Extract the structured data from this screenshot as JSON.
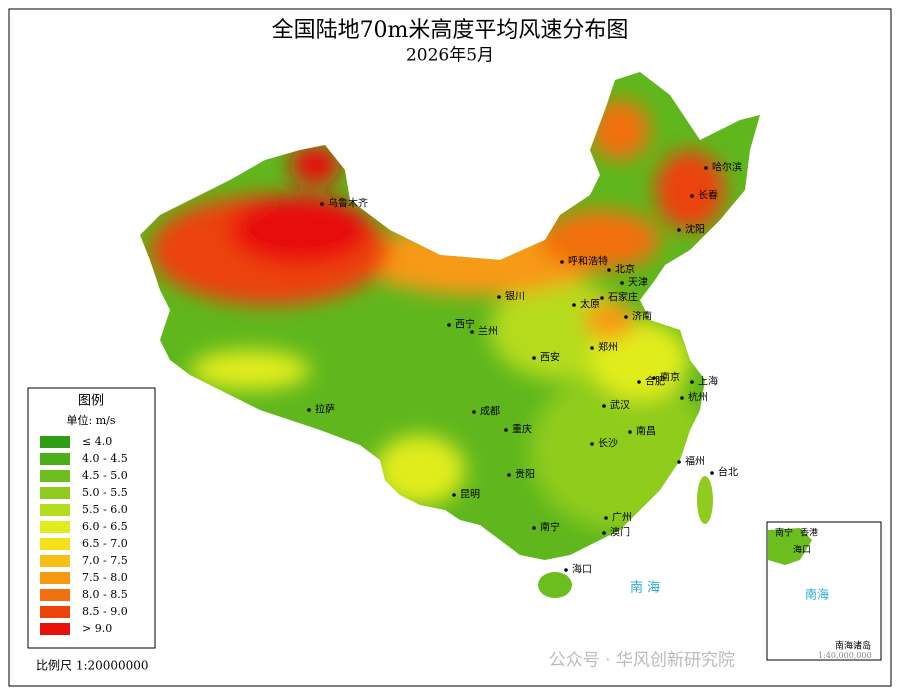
{
  "title": "全国陆地70m米高度平均风速分布图",
  "subtitle": "2026年5月",
  "legend": {
    "title": "图例",
    "unit": "单位: m/s",
    "items": [
      {
        "label": "≤ 4.0",
        "color": "#2e9e14"
      },
      {
        "label": "4.0 - 4.5",
        "color": "#4caf1a"
      },
      {
        "label": "4.5 - 5.0",
        "color": "#6cbd1e"
      },
      {
        "label": "5.0 - 5.5",
        "color": "#8fcc1f"
      },
      {
        "label": "5.5 - 6.0",
        "color": "#b5dc1e"
      },
      {
        "label": "6.0 - 6.5",
        "color": "#e0ec1c"
      },
      {
        "label": "6.5 - 7.0",
        "color": "#f5e01a"
      },
      {
        "label": "7.0 - 7.5",
        "color": "#f8c015"
      },
      {
        "label": "7.5 - 8.0",
        "color": "#f79a12"
      },
      {
        "label": "8.0 - 8.5",
        "color": "#f2700f"
      },
      {
        "label": "8.5 - 9.0",
        "color": "#ec430c"
      },
      {
        "label": "> 9.0",
        "color": "#e8100a"
      }
    ]
  },
  "scale": "比例尺 1:20000000",
  "cities": [
    "乌鲁木齐",
    "哈尔滨",
    "长春",
    "沈阳",
    "呼和浩特",
    "北京",
    "天津",
    "银川",
    "太原",
    "石家庄",
    "济南",
    "西宁",
    "兰州",
    "西安",
    "郑州",
    "南京",
    "合肥",
    "上海",
    "杭州",
    "拉萨",
    "成都",
    "重庆",
    "武汉",
    "南昌",
    "长沙",
    "福州",
    "台北",
    "贵阳",
    "昆明",
    "南宁",
    "广州",
    "澳门",
    "海口"
  ],
  "sea_label": "南 海",
  "inset": {
    "cities": [
      "南宁",
      "香港",
      "海口"
    ],
    "sea_label": "南海",
    "islands_label": "南海诸岛",
    "scale": "1:40,000,000"
  },
  "watermark": "公众号 · 华风创新研究院"
}
